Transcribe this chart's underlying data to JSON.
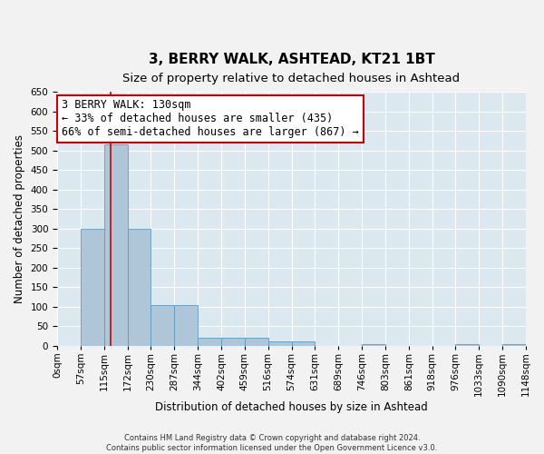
{
  "title": "3, BERRY WALK, ASHTEAD, KT21 1BT",
  "subtitle": "Size of property relative to detached houses in Ashtead",
  "xlabel": "Distribution of detached houses by size in Ashtead",
  "ylabel": "Number of detached properties",
  "bin_labels": [
    "0sqm",
    "57sqm",
    "115sqm",
    "172sqm",
    "230sqm",
    "287sqm",
    "344sqm",
    "402sqm",
    "459sqm",
    "516sqm",
    "574sqm",
    "631sqm",
    "689sqm",
    "746sqm",
    "803sqm",
    "861sqm",
    "918sqm",
    "976sqm",
    "1033sqm",
    "1090sqm",
    "1148sqm"
  ],
  "bar_values": [
    0,
    300,
    515,
    300,
    105,
    105,
    20,
    20,
    20,
    10,
    10,
    0,
    0,
    5,
    0,
    0,
    0,
    5,
    0,
    5
  ],
  "bar_color": "#aec6d8",
  "bar_edgecolor": "#5b9bc2",
  "annotation_text": "3 BERRY WALK: 130sqm\n← 33% of detached houses are smaller (435)\n66% of semi-detached houses are larger (867) →",
  "annotation_box_color": "#ffffff",
  "annotation_box_edgecolor": "#cc0000",
  "vline_color": "#cc0000",
  "background_color": "#dce8f0",
  "plot_bg_color": "#dce8f0",
  "fig_bg_color": "#f2f2f2",
  "grid_color": "#ffffff",
  "ylim": [
    0,
    650
  ],
  "yticks": [
    0,
    50,
    100,
    150,
    200,
    250,
    300,
    350,
    400,
    450,
    500,
    550,
    600,
    650
  ],
  "footer_text": "Contains HM Land Registry data © Crown copyright and database right 2024.\nContains public sector information licensed under the Open Government Licence v3.0.",
  "title_fontsize": 11,
  "subtitle_fontsize": 9.5,
  "label_fontsize": 8.5,
  "tick_fontsize": 7.5,
  "annotation_fontsize": 8.5,
  "footer_fontsize": 6.0,
  "vline_x_index": 2.263
}
